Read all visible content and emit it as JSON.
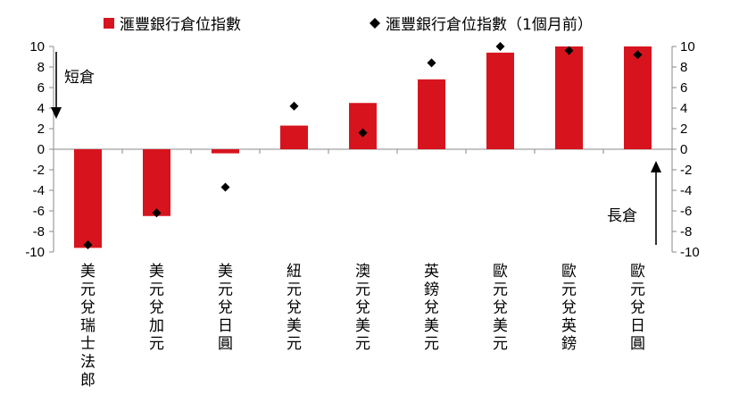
{
  "chart_data": {
    "type": "bar",
    "categories": [
      "美元兌瑞士法郎",
      "美元兌加元",
      "美元兌日圓",
      "紐元兌美元",
      "澳元兌美元",
      "英鎊兌美元",
      "歐元兌美元",
      "歐元兌英鎊",
      "歐元兌日圓"
    ],
    "series": [
      {
        "name": "滙豐銀行倉位指數",
        "kind": "bar",
        "color": "#d7141e",
        "values": [
          -9.6,
          -6.5,
          -0.4,
          2.3,
          4.5,
          6.8,
          9.4,
          10.0,
          10.0
        ]
      },
      {
        "name": "滙豐銀行倉位指數（1個月前）",
        "kind": "marker",
        "marker": "diamond",
        "color": "#000000",
        "values": [
          -9.3,
          -6.2,
          -3.7,
          4.2,
          1.6,
          8.4,
          10.0,
          9.6,
          9.2
        ]
      }
    ],
    "ylim": [
      -10,
      10
    ],
    "yticks": [
      10,
      8,
      6,
      4,
      2,
      0,
      -2,
      -4,
      -6,
      -8,
      -10
    ],
    "grid": false,
    "legend_position": "top",
    "annotations": {
      "short": "短倉",
      "long": "長倉"
    }
  }
}
